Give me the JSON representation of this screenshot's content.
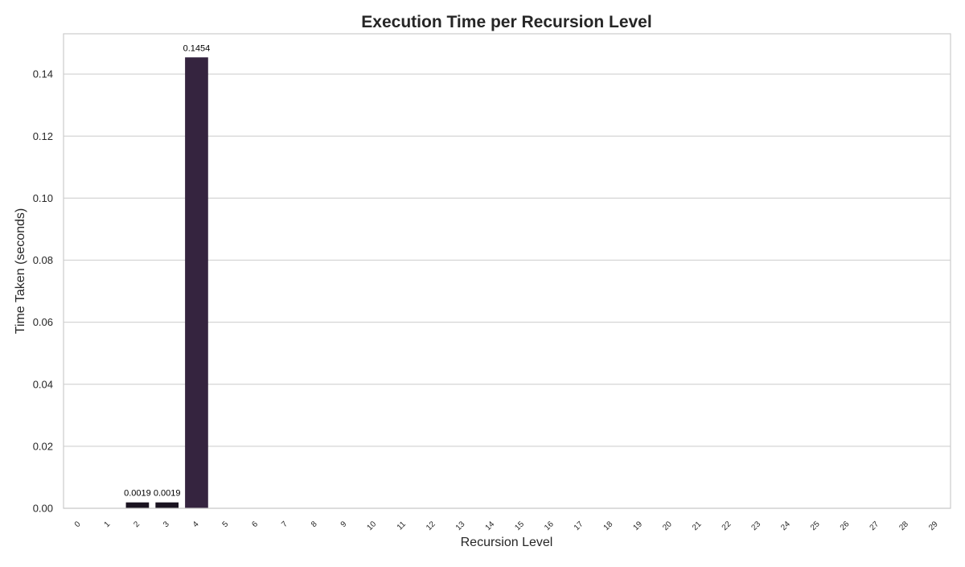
{
  "chart_data": {
    "type": "bar",
    "title": "Execution Time per Recursion Level",
    "xlabel": "Recursion Level",
    "ylabel": "Time Taken (seconds)",
    "categories": [
      "0",
      "1",
      "2",
      "3",
      "4",
      "5",
      "6",
      "7",
      "8",
      "9",
      "10",
      "11",
      "12",
      "13",
      "14",
      "15",
      "16",
      "17",
      "18",
      "19",
      "20",
      "21",
      "22",
      "23",
      "24",
      "25",
      "26",
      "27",
      "28",
      "29"
    ],
    "values": [
      0,
      0,
      0.0019,
      0.0019,
      0.1454,
      0,
      0,
      0,
      0,
      0,
      0,
      0,
      0,
      0,
      0,
      0,
      0,
      0,
      0,
      0,
      0,
      0,
      0,
      0,
      0,
      0,
      0,
      0,
      0,
      0
    ],
    "data_labels": [
      "",
      "",
      "0.0019",
      "0.0019",
      "0.1454",
      "",
      "",
      "",
      "",
      "",
      "",
      "",
      "",
      "",
      "",
      "",
      "",
      "",
      "",
      "",
      "",
      "",
      "",
      "",
      "",
      "",
      "",
      "",
      "",
      ""
    ],
    "bar_colors": [
      "#1a1320",
      "#1a1320",
      "#1a1320",
      "#1a1320",
      "#35243f"
    ],
    "ylim": [
      0,
      0.153
    ],
    "yticks": [
      0,
      0.02,
      0.04,
      0.06,
      0.08,
      0.1,
      0.12,
      0.14
    ],
    "ytick_labels": [
      "0.00",
      "0.02",
      "0.04",
      "0.06",
      "0.08",
      "0.10",
      "0.12",
      "0.14"
    ],
    "grid": "y",
    "colors": {
      "grid": "#d5d5d5",
      "frame": "#cccccc",
      "text": "#262626"
    }
  }
}
